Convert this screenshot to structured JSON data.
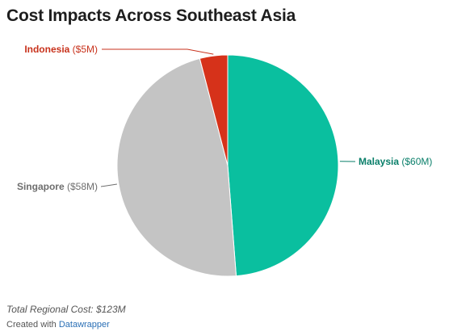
{
  "chart_data": {
    "type": "pie",
    "title": "Cost Impacts Across Southeast Asia",
    "slices": [
      {
        "label": "Malaysia",
        "value_label": "($60M)",
        "value": 60,
        "color": "#0abf9f",
        "label_color": "#0a7f6a",
        "label_side": "right"
      },
      {
        "label": "Singapore",
        "value_label": "($58M)",
        "value": 58,
        "color": "#c4c4c4",
        "label_color": "#6e6e6e",
        "label_side": "left"
      },
      {
        "label": "Indonesia",
        "value_label": "($5M)",
        "value": 5,
        "color": "#d6321a",
        "label_color": "#c8321c",
        "label_side": "left"
      }
    ],
    "start_angle_deg": 0,
    "direction": "clockwise",
    "slice_border_color": "#ffffff"
  },
  "notes": {
    "total": "Total Regional Cost: $123M"
  },
  "footer": {
    "created_with": "Created with",
    "tool_name": "Datawrapper",
    "link_color": "#2a6fb5"
  }
}
